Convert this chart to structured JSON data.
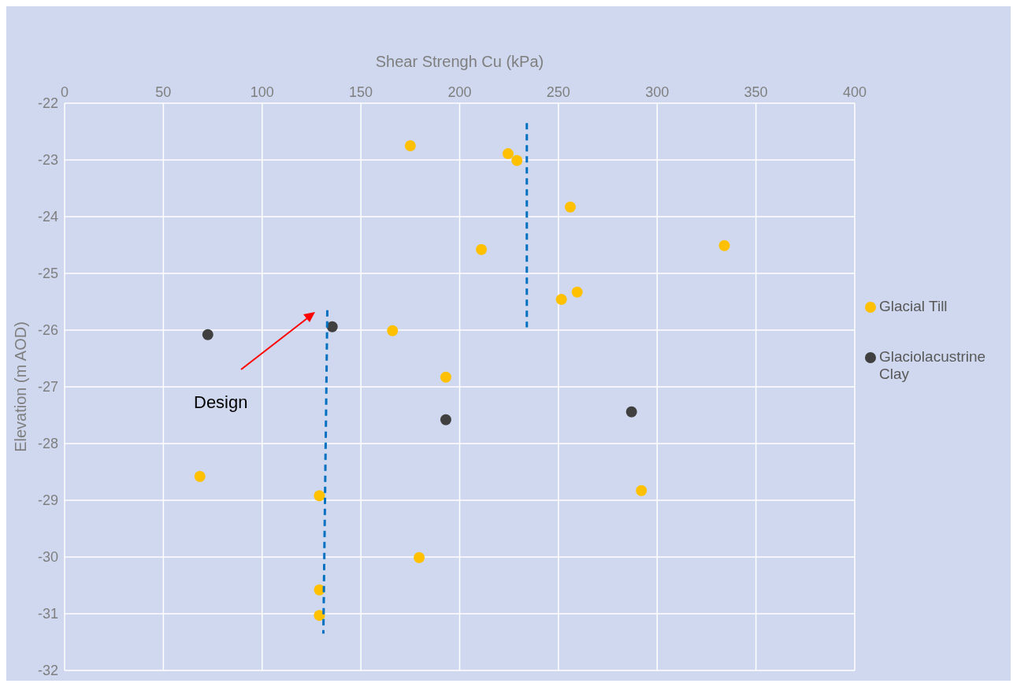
{
  "chart_data": {
    "type": "scatter",
    "xlabel": "Shear Strengh Cu (kPa)",
    "ylabel": "Elevation (m AOD)",
    "xlim": [
      0,
      400
    ],
    "xticks": [
      0,
      50,
      100,
      150,
      200,
      250,
      300,
      350,
      400
    ],
    "ylim": [
      -32,
      -22
    ],
    "yticks": [
      -32,
      -31,
      -30,
      -29,
      -28,
      -27,
      -26,
      -25,
      -24,
      -23,
      -22
    ],
    "grid": true,
    "legend": "right",
    "marker": "circle",
    "annotations": [
      "Design"
    ],
    "series": [
      {
        "name": "Glacial Till",
        "color": "#ffc000",
        "x": [
          175,
          224.5,
          229,
          256,
          211,
          334,
          259.5,
          251.5,
          166,
          193,
          68.5,
          129,
          292,
          179.5,
          129,
          129
        ],
        "values": [
          -22.75,
          -22.89,
          -23.01,
          -23.83,
          -24.58,
          -24.51,
          -25.33,
          -25.46,
          -26.01,
          -26.83,
          -28.58,
          -28.92,
          -28.83,
          -30.01,
          -30.58,
          -31.03
        ]
      },
      {
        "name": "Glaciolacustrine Clay",
        "color": "#404040",
        "x": [
          72.5,
          135.5,
          193,
          287
        ],
        "values": [
          -26.08,
          -25.94,
          -27.58,
          -27.44
        ]
      },
      {
        "type": "line",
        "color": "#0070c0",
        "line_style": "dashed",
        "marker": "none",
        "x": [
          234,
          234
        ],
        "values": [
          -22.35,
          -25.95
        ]
      },
      {
        "type": "line",
        "color": "#0070c0",
        "line_style": "dashed",
        "marker": "none",
        "x": [
          133,
          131
        ],
        "values": [
          -25.65,
          -31.35
        ]
      }
    ]
  }
}
